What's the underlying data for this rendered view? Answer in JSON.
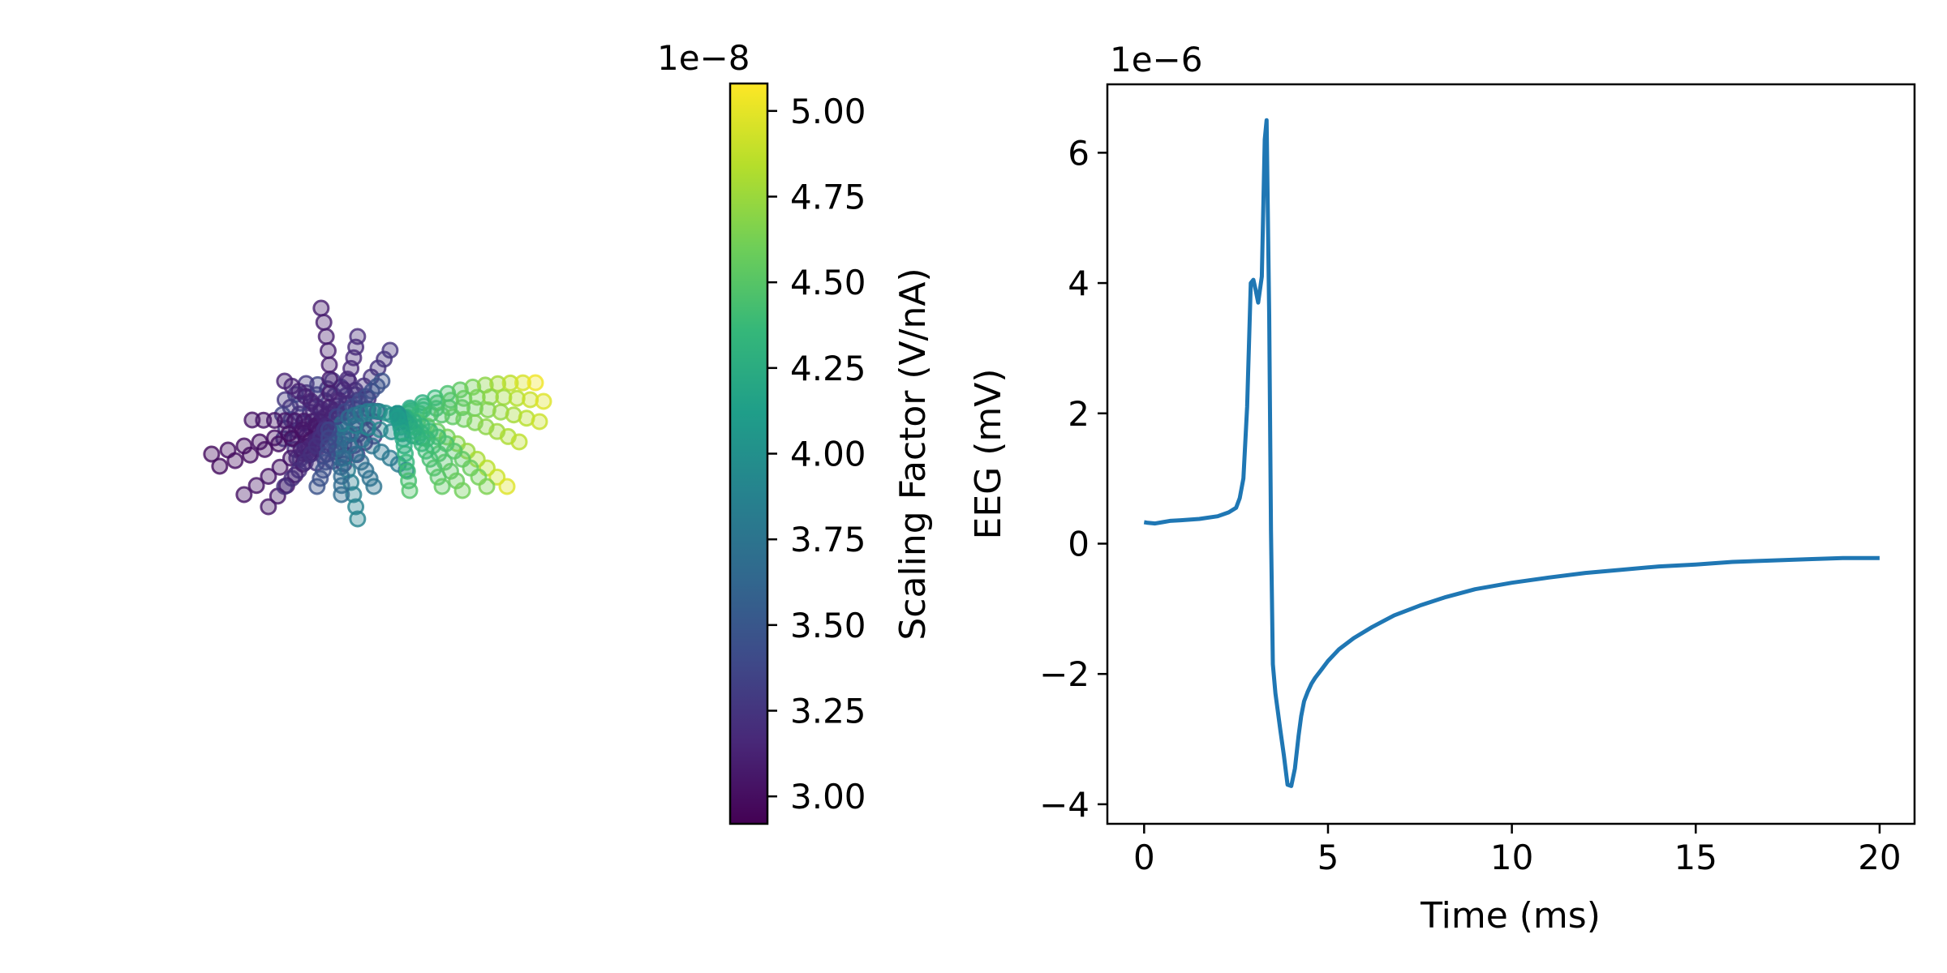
{
  "chart_data": [
    {
      "type": "scatter",
      "description_role": "morphology",
      "point_style": "hollow circles, alpha ~0.5",
      "colormap": "viridis",
      "colorbar": {
        "label": "Scaling Factor (V/nA)",
        "offset_text": "1e−8",
        "ticks": [
          3.0,
          3.25,
          3.5,
          3.75,
          4.0,
          4.25,
          4.5,
          4.75,
          5.0
        ],
        "tick_labels": [
          "3.00",
          "3.25",
          "3.50",
          "3.75",
          "4.00",
          "4.25",
          "4.50",
          "4.75",
          "5.00"
        ],
        "range": [
          2.92,
          5.08
        ],
        "colors": [
          "#440154",
          "#482878",
          "#3e4a89",
          "#31688e",
          "#26828e",
          "#1f9e89",
          "#35b779",
          "#6ece58",
          "#b5de2b",
          "#fde725"
        ]
      },
      "axes_visible": false
    },
    {
      "type": "line",
      "xlabel": "Time (ms)",
      "ylabel": "EEG (mV)",
      "y_offset_text": "1e−6",
      "xlim": [
        -1.0,
        20.95
      ],
      "ylim": [
        -4.3,
        7.05
      ],
      "xticks": [
        0,
        5,
        10,
        15,
        20
      ],
      "yticks": [
        -4,
        -2,
        0,
        2,
        4,
        6
      ],
      "ytick_labels": [
        "−4",
        "−2",
        "0",
        "2",
        "4",
        "6"
      ],
      "series": [
        {
          "color": "#1f77b4",
          "x": [
            0.0,
            0.1,
            0.3,
            0.5,
            0.7,
            1.0,
            1.5,
            2.0,
            2.3,
            2.5,
            2.6,
            2.7,
            2.8,
            2.9,
            2.97,
            3.03,
            3.1,
            3.2,
            3.28,
            3.33,
            3.4,
            3.45,
            3.5,
            3.57,
            3.63,
            3.7,
            3.8,
            3.9,
            4.0,
            4.1,
            4.2,
            4.27,
            4.35,
            4.45,
            4.55,
            4.65,
            4.8,
            5.0,
            5.3,
            5.7,
            6.2,
            6.8,
            7.5,
            8.2,
            9.0,
            10.0,
            11.0,
            12.0,
            13.0,
            14.0,
            15.0,
            16.0,
            17.0,
            18.0,
            19.0,
            20.0
          ],
          "y": [
            0.33,
            0.32,
            0.31,
            0.33,
            0.35,
            0.36,
            0.38,
            0.42,
            0.48,
            0.55,
            0.7,
            1.0,
            2.1,
            4.0,
            4.05,
            3.9,
            3.7,
            4.1,
            6.2,
            6.5,
            3.5,
            0.2,
            -1.85,
            -2.3,
            -2.55,
            -2.85,
            -3.25,
            -3.7,
            -3.72,
            -3.45,
            -2.95,
            -2.65,
            -2.42,
            -2.27,
            -2.15,
            -2.06,
            -1.95,
            -1.8,
            -1.62,
            -1.45,
            -1.28,
            -1.1,
            -0.95,
            -0.82,
            -0.7,
            -0.6,
            -0.52,
            -0.45,
            -0.4,
            -0.35,
            -0.32,
            -0.28,
            -0.26,
            -0.24,
            -0.22,
            -0.22
          ]
        }
      ]
    }
  ]
}
